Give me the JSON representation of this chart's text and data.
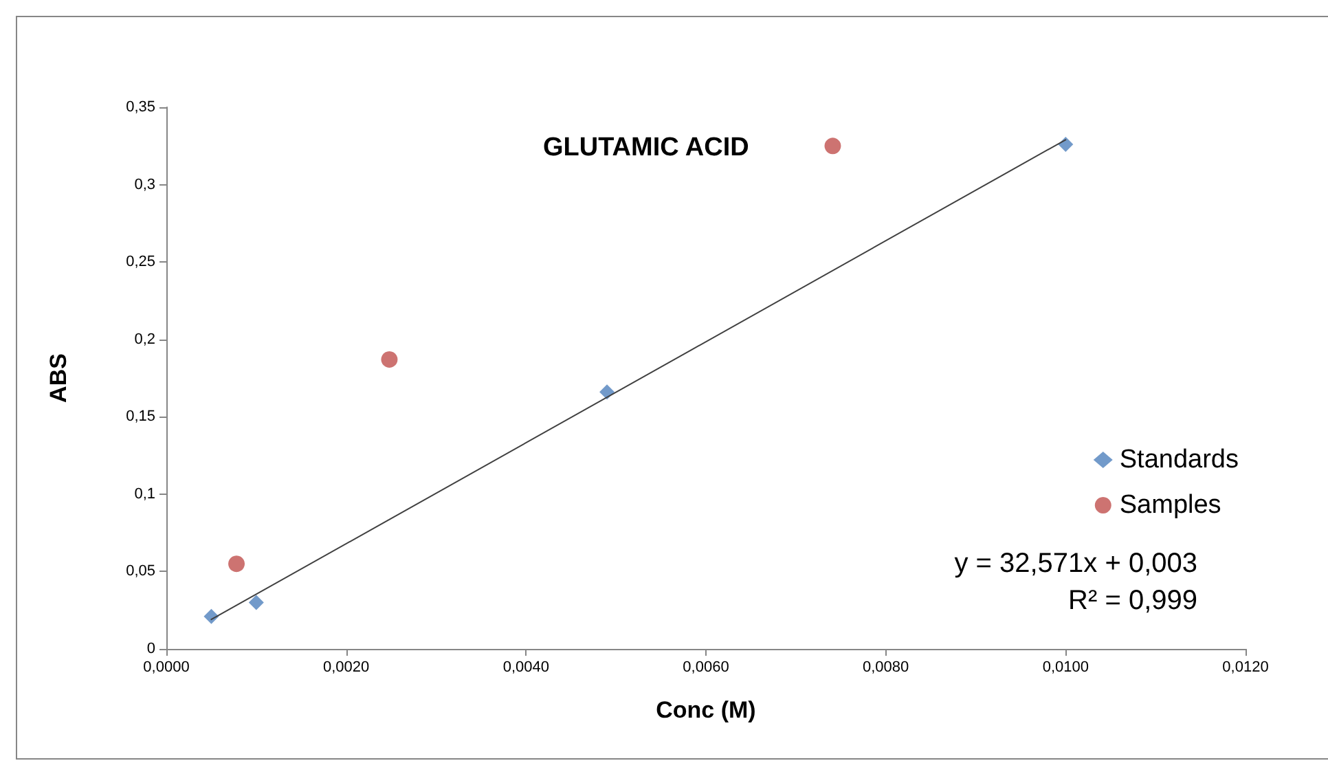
{
  "chart_data": {
    "type": "scatter",
    "title": "GLUTAMIC ACID",
    "xlabel": "Conc (M)",
    "ylabel": "ABS",
    "xlim": [
      0,
      0.012
    ],
    "ylim": [
      0,
      0.35
    ],
    "xticks": [
      {
        "value": 0,
        "label": "0,0000"
      },
      {
        "value": 0.002,
        "label": "0,0020"
      },
      {
        "value": 0.004,
        "label": "0,0040"
      },
      {
        "value": 0.006,
        "label": "0,0060"
      },
      {
        "value": 0.008,
        "label": "0,0080"
      },
      {
        "value": 0.01,
        "label": "0,0100"
      },
      {
        "value": 0.012,
        "label": "0,0120"
      }
    ],
    "yticks": [
      0,
      {
        "value": 0.05,
        "label": "0,05"
      },
      {
        "value": 0.1,
        "label": "0,1"
      },
      {
        "value": 0.15,
        "label": "0,15"
      },
      {
        "value": 0.2,
        "label": "0,2"
      },
      {
        "value": 0.25,
        "label": "0,25"
      },
      {
        "value": 0.3,
        "label": "0,3"
      },
      {
        "value": 0.35,
        "label": "0,35"
      }
    ],
    "series": [
      {
        "name": "Standards",
        "marker": "diamond",
        "color": "#4f81bd",
        "x": [
          0.0005,
          0.001,
          0.0049,
          0.01
        ],
        "values": [
          0.021,
          0.03,
          0.166,
          0.326
        ]
      },
      {
        "name": "Samples",
        "marker": "circle",
        "color": "#c0504d",
        "x": [
          0.00078,
          0.00248,
          0.00741
        ],
        "values": [
          0.055,
          0.187,
          0.325
        ]
      },
      {
        "type": "line",
        "marker": "none",
        "color": "#404040",
        "x": [
          0.0005,
          0.01
        ],
        "values": [
          0.019,
          0.329
        ]
      }
    ],
    "annotations": [
      "y = 32,571x + 0,003",
      "R² = 0,999"
    ],
    "grid": false,
    "legend": "right"
  }
}
